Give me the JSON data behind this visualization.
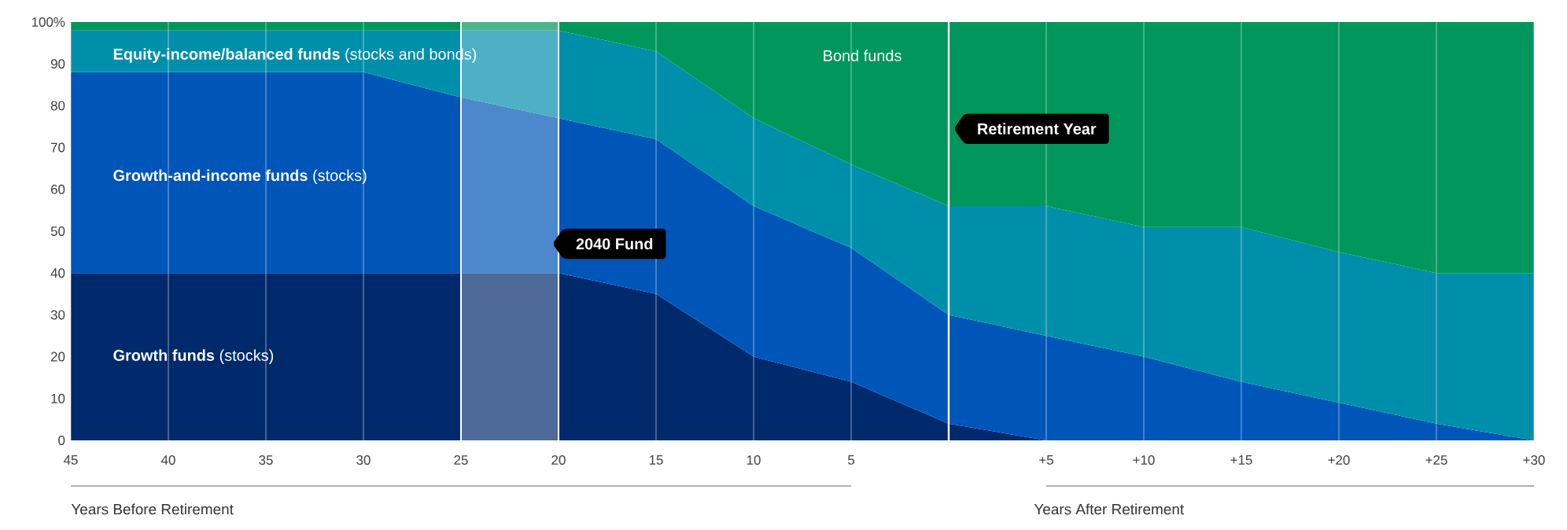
{
  "chart_data": {
    "type": "area",
    "stacked": true,
    "x": [
      -45,
      -40,
      -35,
      -30,
      -25,
      -20,
      -15,
      -10,
      -5,
      0,
      5,
      10,
      15,
      20,
      25,
      30
    ],
    "series": [
      {
        "name": "**Growth funds** (stocks)",
        "color": "#002a6c",
        "values": [
          40,
          40,
          40,
          40,
          40,
          40,
          35,
          20,
          14,
          4,
          0,
          0,
          0,
          0,
          0,
          0
        ]
      },
      {
        "name": "**Growth-and-income funds** (stocks)",
        "color": "#0055b8",
        "values": [
          48,
          48,
          48,
          48,
          42,
          37,
          37,
          36,
          32,
          26,
          25,
          20,
          14,
          9,
          4,
          0
        ]
      },
      {
        "name": "**Equity-income/balanced funds** (stocks and bonds)",
        "color": "#008fab",
        "values": [
          10,
          10,
          10,
          10,
          16,
          21,
          21,
          21,
          20,
          26,
          31,
          31,
          37,
          36,
          36,
          40
        ]
      },
      {
        "name": "Bond funds",
        "color": "#00965c",
        "values": [
          2,
          2,
          2,
          2,
          2,
          2,
          7,
          23,
          34,
          44,
          44,
          49,
          49,
          55,
          60,
          60
        ]
      }
    ],
    "xlim": [
      -45,
      30
    ],
    "xticks": [
      {
        "value": -45,
        "label": "45"
      },
      {
        "value": -40,
        "label": "40"
      },
      {
        "value": -35,
        "label": "35"
      },
      {
        "value": -30,
        "label": "30"
      },
      {
        "value": -25,
        "label": "25"
      },
      {
        "value": -20,
        "label": "20"
      },
      {
        "value": -15,
        "label": "15"
      },
      {
        "value": -10,
        "label": "10"
      },
      {
        "value": -5,
        "label": "5"
      },
      {
        "value": 0,
        "label": null
      },
      {
        "value": 5,
        "label": "+5"
      },
      {
        "value": 10,
        "label": "+10"
      },
      {
        "value": 15,
        "label": "+15"
      },
      {
        "value": 20,
        "label": "+20"
      },
      {
        "value": 25,
        "label": "+25"
      },
      {
        "value": 30,
        "label": "+30"
      }
    ],
    "ylim": [
      0,
      100
    ],
    "yticks": [
      0,
      10,
      20,
      30,
      40,
      50,
      60,
      70,
      80,
      90,
      {
        "value": 100,
        "label": "100%"
      }
    ],
    "xlabel": "Years Before Retirement",
    "annotations": [
      "Years After Retirement"
    ],
    "grid": "x",
    "bands": [
      {
        "axis": "x",
        "from": -25,
        "to": -20,
        "label": "2040 Fund",
        "color": "#ffffff"
      }
    ],
    "ref_lines": [
      {
        "axis": "x",
        "value": 0,
        "label": "Retirement Year",
        "color": "#ffffff"
      }
    ]
  }
}
